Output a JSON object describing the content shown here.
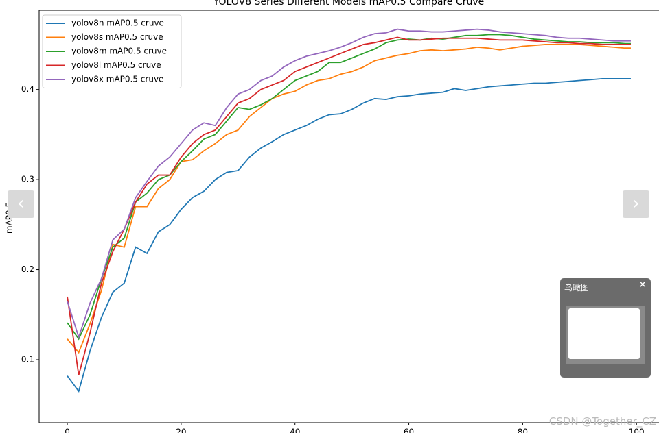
{
  "chart_data": {
    "type": "line",
    "title": "YOLOV8 Series Different Models mAP0.5 Compare Cruve",
    "y_label": "mAP0.5",
    "x": [
      0,
      2,
      4,
      6,
      8,
      10,
      12,
      14,
      16,
      18,
      20,
      22,
      24,
      26,
      28,
      30,
      32,
      34,
      36,
      38,
      40,
      42,
      44,
      46,
      48,
      50,
      52,
      54,
      56,
      58,
      60,
      62,
      64,
      66,
      68,
      70,
      72,
      74,
      76,
      78,
      80,
      82,
      84,
      86,
      88,
      90,
      92,
      94,
      96,
      98,
      99
    ],
    "series": [
      {
        "name": "yolov8n mAP0.5 cruve",
        "color": "#1f77b4",
        "values": [
          0.082,
          0.065,
          0.11,
          0.147,
          0.175,
          0.185,
          0.225,
          0.218,
          0.242,
          0.25,
          0.267,
          0.28,
          0.287,
          0.3,
          0.308,
          0.31,
          0.325,
          0.335,
          0.342,
          0.35,
          0.355,
          0.36,
          0.367,
          0.372,
          0.373,
          0.378,
          0.385,
          0.39,
          0.389,
          0.392,
          0.393,
          0.395,
          0.396,
          0.397,
          0.401,
          0.399,
          0.401,
          0.403,
          0.404,
          0.405,
          0.406,
          0.407,
          0.407,
          0.408,
          0.409,
          0.41,
          0.411,
          0.412,
          0.412,
          0.412,
          0.412
        ]
      },
      {
        "name": "yolov8s mAP0.5 cruve",
        "color": "#ff7f0e",
        "values": [
          0.123,
          0.108,
          0.14,
          0.177,
          0.228,
          0.225,
          0.27,
          0.27,
          0.29,
          0.3,
          0.32,
          0.322,
          0.332,
          0.34,
          0.35,
          0.355,
          0.37,
          0.38,
          0.39,
          0.395,
          0.398,
          0.405,
          0.41,
          0.412,
          0.417,
          0.42,
          0.425,
          0.432,
          0.435,
          0.438,
          0.44,
          0.443,
          0.444,
          0.443,
          0.444,
          0.445,
          0.447,
          0.446,
          0.444,
          0.446,
          0.448,
          0.449,
          0.45,
          0.45,
          0.45,
          0.45,
          0.449,
          0.448,
          0.447,
          0.446,
          0.446
        ]
      },
      {
        "name": "yolov8m mAP0.5 cruve",
        "color": "#2ca02c",
        "values": [
          0.141,
          0.123,
          0.15,
          0.19,
          0.225,
          0.235,
          0.275,
          0.285,
          0.3,
          0.305,
          0.32,
          0.332,
          0.345,
          0.35,
          0.365,
          0.38,
          0.378,
          0.383,
          0.39,
          0.4,
          0.41,
          0.415,
          0.42,
          0.43,
          0.43,
          0.435,
          0.44,
          0.445,
          0.452,
          0.455,
          0.456,
          0.455,
          0.457,
          0.456,
          0.458,
          0.46,
          0.46,
          0.461,
          0.461,
          0.46,
          0.458,
          0.456,
          0.455,
          0.454,
          0.453,
          0.453,
          0.452,
          0.452,
          0.452,
          0.451,
          0.451
        ]
      },
      {
        "name": "yolov8l mAP0.5 cruve",
        "color": "#d62728",
        "values": [
          0.17,
          0.083,
          0.13,
          0.185,
          0.22,
          0.245,
          0.275,
          0.295,
          0.305,
          0.305,
          0.325,
          0.34,
          0.35,
          0.355,
          0.37,
          0.385,
          0.39,
          0.4,
          0.405,
          0.41,
          0.42,
          0.425,
          0.43,
          0.435,
          0.44,
          0.445,
          0.45,
          0.452,
          0.455,
          0.458,
          0.455,
          0.455,
          0.456,
          0.457,
          0.457,
          0.457,
          0.457,
          0.456,
          0.455,
          0.455,
          0.455,
          0.454,
          0.453,
          0.452,
          0.452,
          0.451,
          0.451,
          0.45,
          0.45,
          0.45,
          0.45
        ]
      },
      {
        "name": "yolov8x mAP0.5 cruve",
        "color": "#9467bd",
        "values": [
          0.165,
          0.125,
          0.163,
          0.19,
          0.233,
          0.245,
          0.28,
          0.298,
          0.315,
          0.325,
          0.34,
          0.355,
          0.363,
          0.36,
          0.38,
          0.395,
          0.4,
          0.41,
          0.415,
          0.425,
          0.432,
          0.437,
          0.44,
          0.443,
          0.447,
          0.452,
          0.458,
          0.462,
          0.463,
          0.467,
          0.465,
          0.465,
          0.464,
          0.464,
          0.465,
          0.466,
          0.467,
          0.466,
          0.464,
          0.463,
          0.462,
          0.461,
          0.46,
          0.458,
          0.457,
          0.457,
          0.456,
          0.455,
          0.454,
          0.454,
          0.454
        ]
      }
    ],
    "xlim": [
      -4.95,
      103.95
    ],
    "ylim": [
      0.03,
      0.488
    ],
    "xticks": [
      0,
      20,
      40,
      60,
      80,
      100
    ],
    "yticks": [
      0.1,
      0.2,
      0.3,
      0.4
    ],
    "grid": false,
    "legend": "upper left"
  },
  "ui": {
    "prev": "‹",
    "next": "›",
    "minimap_title": "鸟瞰图",
    "close": "✕",
    "watermark": "CSDN @Together_CZ"
  }
}
